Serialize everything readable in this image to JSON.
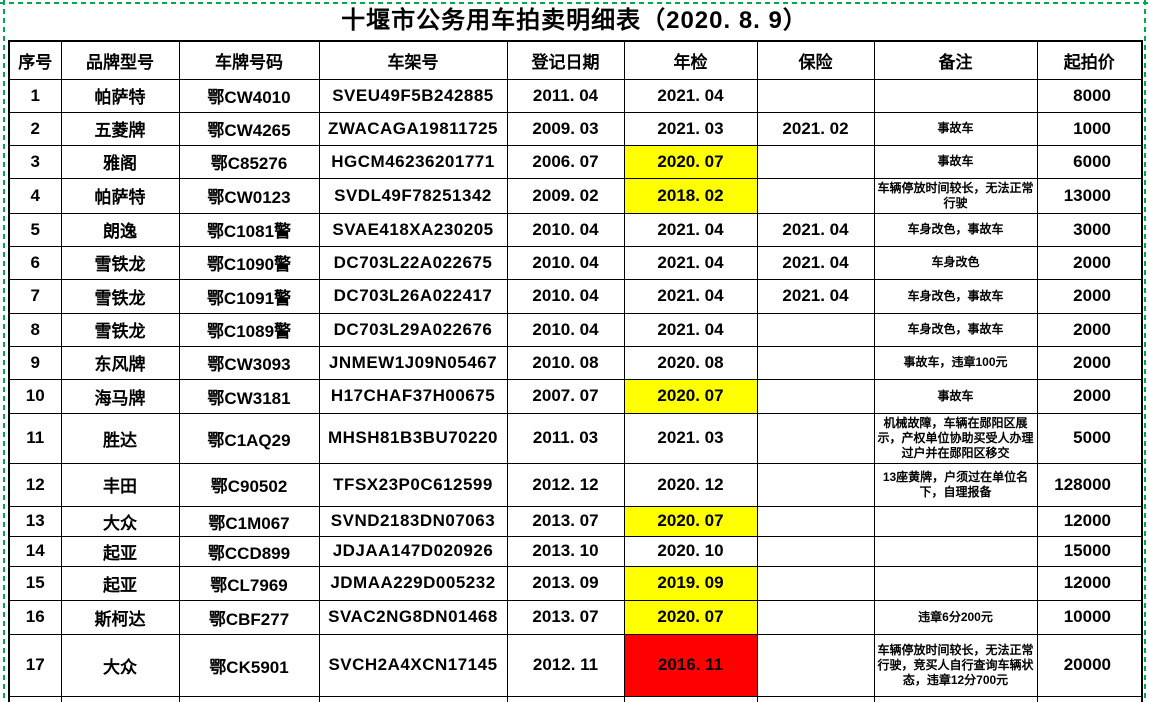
{
  "title": "十堰市公务用车拍卖明细表（2020. 8. 9）",
  "columns": [
    "序号",
    "品牌型号",
    "车牌号码",
    "车架号",
    "登记日期",
    "年检",
    "保险",
    "备注",
    "起拍价"
  ],
  "colors": {
    "highlight_yellow": "#FFFF00",
    "highlight_red": "#FF0000",
    "print_area_green": "#00A650",
    "grid_border": "#000000"
  },
  "rows": [
    {
      "no": "1",
      "brand": "帕萨特",
      "plate": "鄂CW4010",
      "vin": "SVEU49F5B242885",
      "reg": "2011. 04",
      "inspection": "2021. 04",
      "inspection_bg": "",
      "insurance": "",
      "remark": "",
      "price": "8000"
    },
    {
      "no": "2",
      "brand": "五菱牌",
      "plate": "鄂CW4265",
      "vin": "ZWACAGA19811725",
      "reg": "2009. 03",
      "inspection": "2021. 03",
      "inspection_bg": "",
      "insurance": "2021. 02",
      "remark": "事故车",
      "price": "1000"
    },
    {
      "no": "3",
      "brand": "雅阁",
      "plate": "鄂C85276",
      "vin": "HGCM46236201771",
      "reg": "2006. 07",
      "inspection": "2020. 07",
      "inspection_bg": "yellow",
      "insurance": "",
      "remark": "事故车",
      "price": "6000"
    },
    {
      "no": "4",
      "brand": "帕萨特",
      "plate": "鄂CW0123",
      "vin": "SVDL49F78251342",
      "reg": "2009. 02",
      "inspection": "2018. 02",
      "inspection_bg": "yellow",
      "insurance": "",
      "remark": "车辆停放时间较长，无法正常行驶",
      "price": "13000"
    },
    {
      "no": "5",
      "brand": "朗逸",
      "plate": "鄂C1081警",
      "vin": "SVAE418XA230205",
      "reg": "2010. 04",
      "inspection": "2021. 04",
      "inspection_bg": "",
      "insurance": "2021. 04",
      "remark": "车身改色，事故车",
      "price": "3000"
    },
    {
      "no": "6",
      "brand": "雪铁龙",
      "plate": "鄂C1090警",
      "vin": "DC703L22A022675",
      "reg": "2010. 04",
      "inspection": "2021. 04",
      "inspection_bg": "",
      "insurance": "2021. 04",
      "remark": "车身改色",
      "price": "2000"
    },
    {
      "no": "7",
      "brand": "雪铁龙",
      "plate": "鄂C1091警",
      "vin": "DC703L26A022417",
      "reg": "2010. 04",
      "inspection": "2021. 04",
      "inspection_bg": "",
      "insurance": "2021. 04",
      "remark": "车身改色，事故车",
      "price": "2000"
    },
    {
      "no": "8",
      "brand": "雪铁龙",
      "plate": "鄂C1089警",
      "vin": "DC703L29A022676",
      "reg": "2010. 04",
      "inspection": "2021. 04",
      "inspection_bg": "",
      "insurance": "",
      "remark": "车身改色，事故车",
      "price": "2000"
    },
    {
      "no": "9",
      "brand": "东风牌",
      "plate": "鄂CW3093",
      "vin": "JNMEW1J09N05467",
      "reg": "2010. 08",
      "inspection": "2020. 08",
      "inspection_bg": "",
      "insurance": "",
      "remark": "事故车，违章100元",
      "price": "2000"
    },
    {
      "no": "10",
      "brand": "海马牌",
      "plate": "鄂CW3181",
      "vin": "H17CHAF37H00675",
      "reg": "2007. 07",
      "inspection": "2020. 07",
      "inspection_bg": "yellow",
      "insurance": "",
      "remark": "事故车",
      "price": "2000"
    },
    {
      "no": "11",
      "brand": "胜达",
      "plate": "鄂C1AQ29",
      "vin": "MHSH81B3BU70220",
      "reg": "2011. 03",
      "inspection": "2021. 03",
      "inspection_bg": "",
      "insurance": "",
      "remark": "机械故障，车辆在郧阳区展示，产权单位协助买受人办理过户并在郧阳区移交",
      "price": "5000"
    },
    {
      "no": "12",
      "brand": "丰田",
      "plate": "鄂C90502",
      "vin": "TFSX23P0C612599",
      "reg": "2012. 12",
      "inspection": "2020. 12",
      "inspection_bg": "",
      "insurance": "",
      "remark": "13座黄牌，户须过在单位名下，自理报备",
      "price": "128000"
    },
    {
      "no": "13",
      "brand": "大众",
      "plate": "鄂C1M067",
      "vin": "SVND2183DN07063",
      "reg": "2013. 07",
      "inspection": "2020. 07",
      "inspection_bg": "yellow",
      "insurance": "",
      "remark": "",
      "price": "12000"
    },
    {
      "no": "14",
      "brand": "起亚",
      "plate": "鄂CCD899",
      "vin": "JDJAA147D020926",
      "reg": "2013. 10",
      "inspection": "2020. 10",
      "inspection_bg": "",
      "insurance": "",
      "remark": "",
      "price": "15000"
    },
    {
      "no": "15",
      "brand": "起亚",
      "plate": "鄂CL7969",
      "vin": "JDMAA229D005232",
      "reg": "2013. 09",
      "inspection": "2019. 09",
      "inspection_bg": "yellow",
      "insurance": "",
      "remark": "",
      "price": "12000"
    },
    {
      "no": "16",
      "brand": "斯柯达",
      "plate": "鄂CBF277",
      "vin": "SVAC2NG8DN01468",
      "reg": "2013. 07",
      "inspection": "2020. 07",
      "inspection_bg": "yellow",
      "insurance": "",
      "remark": "违章6分200元",
      "price": "10000"
    },
    {
      "no": "17",
      "brand": "大众",
      "plate": "鄂CK5901",
      "vin": "SVCH2A4XCN17145",
      "reg": "2012. 11",
      "inspection": "2016. 11",
      "inspection_bg": "red",
      "insurance": "",
      "remark": "车辆停放时间较长，无法正常行驶，竞买人自行查询车辆状态，违章12分700元",
      "price": "20000"
    }
  ]
}
